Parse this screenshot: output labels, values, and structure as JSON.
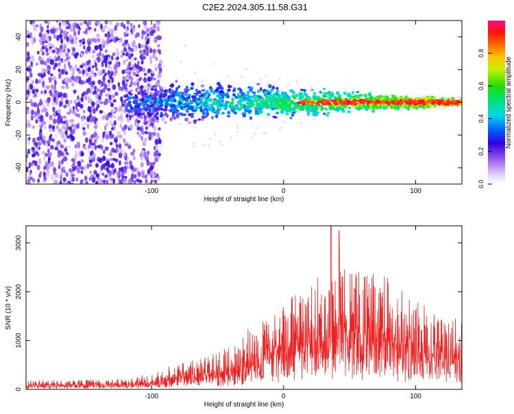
{
  "title": "C2E2.2024.305.11.58.G31",
  "chart_data": [
    {
      "type": "heatmap",
      "xlabel": "Height of straight line (km)",
      "ylabel": "Frequency (Hz)",
      "xlim": [
        -195,
        135
      ],
      "ylim": [
        -50,
        50
      ],
      "xticks": [
        -100,
        0,
        100
      ],
      "xtick_labels": [
        "-100",
        "0",
        "100"
      ],
      "yticks": [
        -40,
        -20,
        0,
        20,
        40
      ],
      "ytick_labels": [
        "-40",
        "-20",
        "0",
        "20",
        "40"
      ],
      "colorbar": {
        "label": "Normalized spectral amplitude",
        "range": [
          0,
          1
        ],
        "ticks": [
          0.0,
          0.2,
          0.4,
          0.6,
          0.8
        ],
        "tick_labels": [
          "0.0",
          "0.2",
          "0.4",
          "0.6",
          "0.8"
        ],
        "colormap": "rainbow (white-violet-blue-cyan-green-yellow-orange-red-pink)"
      },
      "description_values": {
        "noise_region_x": [
          -195,
          -95
        ],
        "signal_center_frequency": 0,
        "signal_onset_x": -120,
        "peak_amplitude_region_x": [
          10,
          135
        ]
      }
    },
    {
      "type": "line",
      "xlabel": "Height of straight line (km)",
      "ylabel": "SNR (10 * v/v)",
      "xlim": [
        -195,
        135
      ],
      "ylim": [
        0,
        3350
      ],
      "xticks": [
        -100,
        0,
        100
      ],
      "xtick_labels": [
        "-100",
        "0",
        "100"
      ],
      "yticks": [
        0,
        1000,
        2000,
        3000
      ],
      "ytick_labels": [
        "0",
        "1000",
        "2000",
        "3000"
      ],
      "color": "#ee2222",
      "envelope": {
        "x": [
          -195,
          -150,
          -120,
          -100,
          -80,
          -60,
          -40,
          -20,
          0,
          20,
          40,
          60,
          80,
          100,
          120,
          135
        ],
        "y": [
          170,
          180,
          200,
          300,
          500,
          600,
          800,
          1300,
          1600,
          2000,
          2300,
          2200,
          2100,
          1700,
          1500,
          1300
        ]
      },
      "peaks": [
        {
          "x": 36,
          "y": 3350
        },
        {
          "x": 42,
          "y": 3250
        }
      ]
    }
  ]
}
